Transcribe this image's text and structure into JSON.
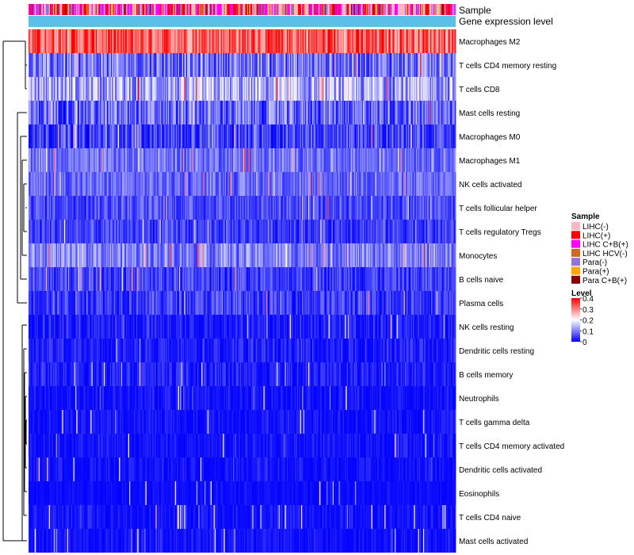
{
  "chart_data": {
    "type": "heatmap",
    "title": "",
    "annotations": [
      {
        "name": "Sample",
        "label": "Sample"
      },
      {
        "name": "Gene expression level",
        "label": "Gene expression level",
        "color": "#5BC0E8"
      }
    ],
    "rows": [
      {
        "name": "Macrophages M2",
        "mean": 0.33,
        "spread": 0.09
      },
      {
        "name": "T cells CD4 memory resting",
        "mean": 0.09,
        "spread": 0.08
      },
      {
        "name": "T cells CD8",
        "mean": 0.13,
        "spread": 0.09
      },
      {
        "name": "Mast cells resting",
        "mean": 0.08,
        "spread": 0.08
      },
      {
        "name": "Macrophages M0",
        "mean": 0.05,
        "spread": 0.07
      },
      {
        "name": "Macrophages M1",
        "mean": 0.09,
        "spread": 0.05
      },
      {
        "name": "NK cells activated",
        "mean": 0.08,
        "spread": 0.05
      },
      {
        "name": "T cells follicular helper",
        "mean": 0.06,
        "spread": 0.05
      },
      {
        "name": "T cells regulatory  Tregs",
        "mean": 0.05,
        "spread": 0.05
      },
      {
        "name": "Monocytes",
        "mean": 0.1,
        "spread": 0.06
      },
      {
        "name": "B cells naive",
        "mean": 0.05,
        "spread": 0.05
      },
      {
        "name": "Plasma cells",
        "mean": 0.05,
        "spread": 0.05
      },
      {
        "name": "NK cells resting",
        "mean": 0.02,
        "spread": 0.04
      },
      {
        "name": "Dendritic cells resting",
        "mean": 0.02,
        "spread": 0.04
      },
      {
        "name": "B cells memory",
        "mean": 0.02,
        "spread": 0.04
      },
      {
        "name": "Neutrophils",
        "mean": 0.01,
        "spread": 0.03
      },
      {
        "name": "T cells gamma delta",
        "mean": 0.01,
        "spread": 0.03
      },
      {
        "name": "T cells CD4 memory activated",
        "mean": 0.01,
        "spread": 0.03
      },
      {
        "name": "Dendritic cells activated",
        "mean": 0.01,
        "spread": 0.03
      },
      {
        "name": "Eosinophils",
        "mean": 0.005,
        "spread": 0.02
      },
      {
        "name": "T cells CD4 naive",
        "mean": 0.01,
        "spread": 0.03
      },
      {
        "name": "Mast cells activated",
        "mean": 0.01,
        "spread": 0.03
      }
    ],
    "n_samples": 420,
    "legend": {
      "sample": {
        "title": "Sample",
        "items": [
          {
            "label": "LIHC(-)",
            "color": "#FFB6C1"
          },
          {
            "label": "LIHC(+)",
            "color": "#FF0000"
          },
          {
            "label": "LIHC C+B(+)",
            "color": "#FF00FF"
          },
          {
            "label": "LIHC HCV(-)",
            "color": "#D2691E"
          },
          {
            "label": "Para(-)",
            "color": "#9370DB"
          },
          {
            "label": "Para(+)",
            "color": "#FFA500"
          },
          {
            "label": "Para C+B(+)",
            "color": "#8B0000"
          }
        ]
      },
      "level": {
        "title": "Level",
        "ticks": [
          "0.4",
          "0.3",
          "0.2",
          "0.1",
          "0"
        ],
        "range": [
          0,
          0.4
        ],
        "colors": [
          "#0000FF",
          "#FFFFFF",
          "#FF0000"
        ]
      }
    }
  }
}
